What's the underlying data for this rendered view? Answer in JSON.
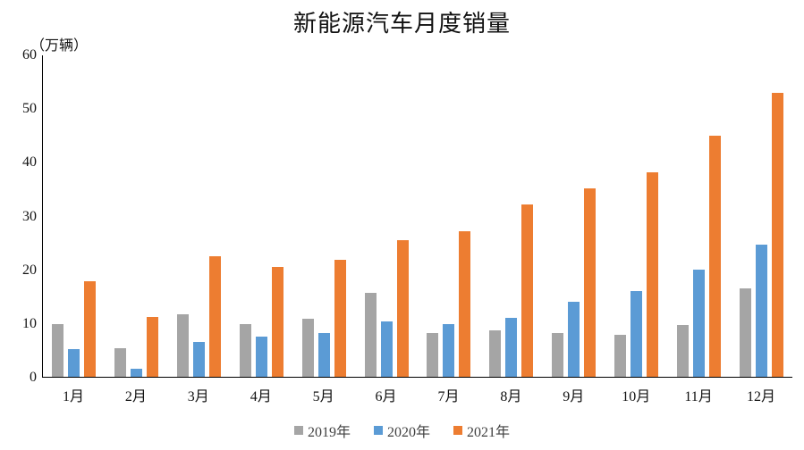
{
  "title": "新能源汽车月度销量",
  "y_axis": {
    "unit_label": "（万辆）",
    "ticks": [
      0,
      10,
      20,
      30,
      40,
      50,
      60
    ]
  },
  "legend": {
    "items_note": "bound from chart_data.series"
  },
  "chart_data": {
    "type": "bar",
    "title": "新能源汽车月度销量",
    "xlabel": "",
    "ylabel": "（万辆）",
    "ylim": [
      0,
      60
    ],
    "grid": false,
    "legend_position": "bottom",
    "categories": [
      "1月",
      "2月",
      "3月",
      "4月",
      "5月",
      "6月",
      "7月",
      "8月",
      "9月",
      "10月",
      "11月",
      "12月"
    ],
    "series": [
      {
        "name": "2019年",
        "color": "#a5a5a5",
        "values": [
          9.8,
          5.4,
          11.7,
          9.9,
          10.8,
          15.6,
          8.2,
          8.7,
          8.2,
          7.9,
          9.7,
          16.5
        ]
      },
      {
        "name": "2020年",
        "color": "#5b9bd5",
        "values": [
          5.2,
          1.5,
          6.5,
          7.5,
          8.2,
          10.3,
          9.8,
          11.0,
          14.0,
          16.0,
          20.0,
          24.7
        ]
      },
      {
        "name": "2021年",
        "color": "#ed7d31",
        "values": [
          17.9,
          11.1,
          22.5,
          20.5,
          21.8,
          25.5,
          27.1,
          32.1,
          35.2,
          38.2,
          45.0,
          53.0
        ]
      }
    ]
  }
}
